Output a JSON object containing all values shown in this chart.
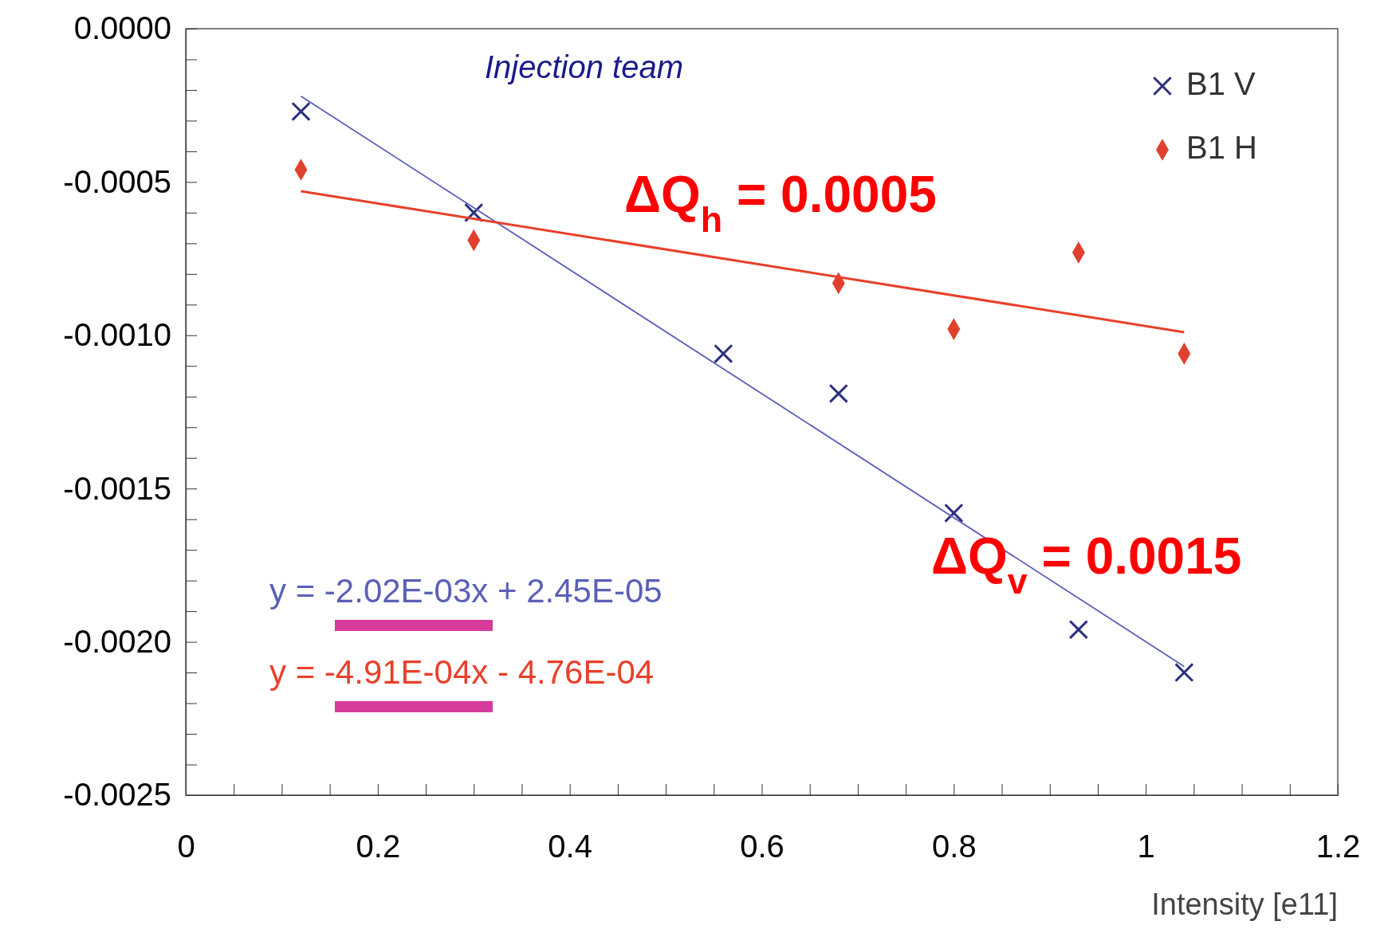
{
  "chart_data": {
    "type": "scatter",
    "xlabel": "Intensity [e11]",
    "xlim": [
      0,
      1.2
    ],
    "xticks": [
      0,
      {
        "value": 0.05,
        "label": null
      },
      0.2,
      {
        "value": 0.1,
        "label": null
      },
      {
        "value": 0.15,
        "label": null
      },
      {
        "value": 0.25,
        "label": null
      },
      {
        "value": 0.3,
        "label": null
      },
      {
        "value": 0.35,
        "label": null
      },
      0.4,
      {
        "value": 0.45,
        "label": null
      },
      {
        "value": 0.5,
        "label": null
      },
      {
        "value": 0.55,
        "label": null
      },
      0.6,
      {
        "value": 0.65,
        "label": null
      },
      {
        "value": 0.7,
        "label": null
      },
      {
        "value": 0.75,
        "label": null
      },
      0.8,
      {
        "value": 0.85,
        "label": null
      },
      {
        "value": 0.9,
        "label": null
      },
      {
        "value": 0.95,
        "label": null
      },
      1,
      {
        "value": 1.05,
        "label": null
      },
      {
        "value": 1.1,
        "label": null
      },
      {
        "value": 1.15,
        "label": null
      },
      1.2
    ],
    "ylim": [
      -0.0025,
      0
    ],
    "yticks": [
      {
        "value": 0,
        "label": "0.0000"
      },
      {
        "value": -0.0001,
        "label": null
      },
      {
        "value": -0.0002,
        "label": null
      },
      {
        "value": -0.0003,
        "label": null
      },
      {
        "value": -0.0004,
        "label": null
      },
      {
        "value": -0.0005,
        "label": "-0.0005"
      },
      {
        "value": -0.0006,
        "label": null
      },
      {
        "value": -0.0007,
        "label": null
      },
      {
        "value": -0.0008,
        "label": null
      },
      {
        "value": -0.0009,
        "label": null
      },
      {
        "value": -0.001,
        "label": "-0.0010"
      },
      {
        "value": -0.0011,
        "label": null
      },
      {
        "value": -0.0012,
        "label": null
      },
      {
        "value": -0.0013,
        "label": null
      },
      {
        "value": -0.0014,
        "label": null
      },
      {
        "value": -0.0015,
        "label": "-0.0015"
      },
      {
        "value": -0.0016,
        "label": null
      },
      {
        "value": -0.0017,
        "label": null
      },
      {
        "value": -0.0018,
        "label": null
      },
      {
        "value": -0.0019,
        "label": null
      },
      {
        "value": -0.002,
        "label": "-0.0020"
      },
      {
        "value": -0.0021,
        "label": null
      },
      {
        "value": -0.0022,
        "label": null
      },
      {
        "value": -0.0023,
        "label": null
      },
      {
        "value": -0.0024,
        "label": null
      },
      {
        "value": -0.0025,
        "label": "-0.0025"
      }
    ],
    "grid": false,
    "legend": "top right",
    "series": [
      {
        "name": "B1 V",
        "color": "#2b2f7e",
        "marker": "cross",
        "x": [
          0.12,
          0.3,
          0.56,
          0.68,
          0.8,
          0.93,
          1.04
        ],
        "values": [
          -0.00027,
          -0.0006,
          -0.00106,
          -0.00119,
          -0.00158,
          -0.00196,
          -0.0021
        ]
      },
      {
        "name": "B1 H",
        "color": "#e0402e",
        "marker": "diamond",
        "x": [
          0.12,
          0.3,
          0.68,
          0.8,
          0.93,
          1.04
        ],
        "values": [
          -0.00046,
          -0.00069,
          -0.00083,
          -0.00098,
          -0.00073,
          -0.00106
        ]
      },
      {
        "type": "line",
        "color": "#5a5fb8",
        "x": [
          0.12,
          1.04
        ],
        "values": [
          -0.00022,
          -0.00208
        ]
      },
      {
        "type": "line",
        "color": "#e8402a",
        "x": [
          0.12,
          1.04
        ],
        "values": [
          -0.00053,
          -0.00099
        ]
      }
    ],
    "annotations": [
      "Injection team",
      "ΔQ$_{h}$ = 0.0005",
      "ΔQ$_{v}$ = 0.0015",
      "y = -2.02E-03x + 2.45E-05",
      "y = -4.91E-04x - 4.76E-04"
    ]
  }
}
